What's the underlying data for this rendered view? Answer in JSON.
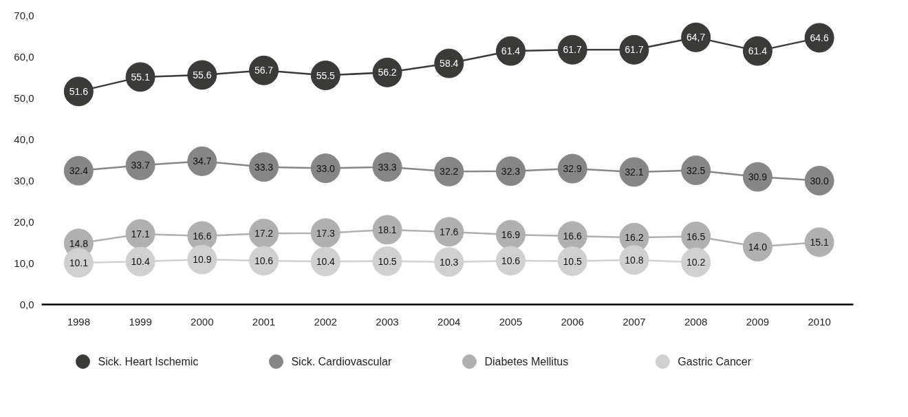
{
  "chart_data": {
    "type": "line",
    "categories": [
      "1998",
      "1999",
      "2000",
      "2001",
      "2002",
      "2003",
      "2004",
      "2005",
      "2006",
      "2007",
      "2008",
      "2009",
      "2010"
    ],
    "series": [
      {
        "name": "Sick. Heart Ischemic",
        "color": "#3a3a38",
        "values": [
          51.6,
          55.1,
          55.6,
          56.7,
          55.5,
          56.2,
          58.4,
          61.4,
          61.7,
          61.7,
          64.7,
          61.4,
          64.6
        ],
        "value_labels": [
          "51.6",
          "55.1",
          "55.6",
          "56.7",
          "55.5",
          "56.2",
          "58.4",
          "61.4",
          "61.7",
          "61.7",
          "64,7",
          "61.4",
          "64.6"
        ]
      },
      {
        "name": "Sick. Cardiovascular",
        "color": "#868686",
        "values": [
          32.4,
          33.7,
          34.7,
          33.3,
          33.0,
          33.3,
          32.2,
          32.3,
          32.9,
          32.1,
          32.5,
          30.9,
          30.0
        ],
        "value_labels": [
          "32.4",
          "33.7",
          "34.7",
          "33.3",
          "33.0",
          "33.3",
          "32.2",
          "32.3",
          "32.9",
          "32.1",
          "32.5",
          "30.9",
          "30.0"
        ]
      },
      {
        "name": "Diabetes Mellitus",
        "color": "#b0b0b0",
        "values": [
          14.8,
          17.1,
          16.6,
          17.2,
          17.3,
          18.1,
          17.6,
          16.9,
          16.6,
          16.2,
          16.5,
          14.0,
          15.1
        ],
        "value_labels": [
          "14.8",
          "17.1",
          "16.6",
          "17.2",
          "17.3",
          "18.1",
          "17.6",
          "16.9",
          "16.6",
          "16.2",
          "16.5",
          "14.0",
          "15.1"
        ]
      },
      {
        "name": "Gastric Cancer",
        "color": "#d0d0d0",
        "values": [
          10.1,
          10.4,
          10.9,
          10.6,
          10.4,
          10.5,
          10.3,
          10.6,
          10.5,
          10.8,
          10.2,
          null,
          null
        ],
        "value_labels": [
          "10.1",
          "10.4",
          "10.9",
          "10.6",
          "10.4",
          "10.5",
          "10.3",
          "10.6",
          "10.5",
          "10.8",
          "10.2",
          null,
          null
        ]
      }
    ],
    "ylim": [
      0,
      70
    ],
    "yticks": [
      {
        "value": 0,
        "label": "0,0"
      },
      {
        "value": 10,
        "label": "10,0"
      },
      {
        "value": 20,
        "label": "20,0"
      },
      {
        "value": 30,
        "label": "30,0"
      },
      {
        "value": 40,
        "label": "40,0"
      },
      {
        "value": 50,
        "label": "50,0"
      },
      {
        "value": 60,
        "label": "60,0"
      },
      {
        "value": 70,
        "label": "70,0"
      }
    ],
    "grid": false,
    "legend": "bottom",
    "marker": "circle",
    "line_style": "solid"
  }
}
